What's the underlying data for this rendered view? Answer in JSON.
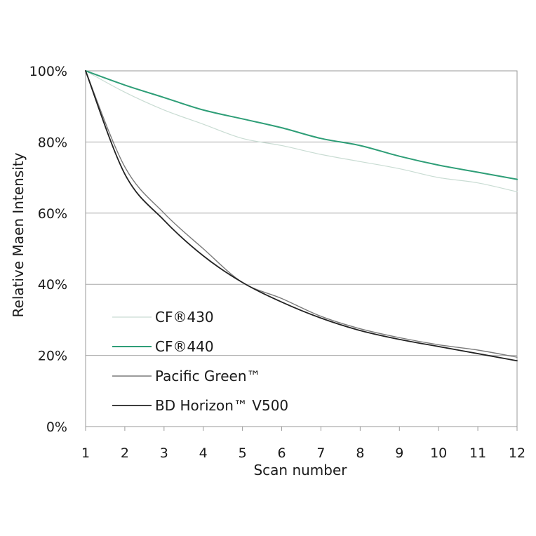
{
  "chart_data": {
    "type": "line",
    "title": "",
    "xlabel": "Scan number",
    "ylabel": "Relative Maen Intensity",
    "x": [
      1,
      2,
      3,
      4,
      5,
      6,
      7,
      8,
      9,
      10,
      11,
      12
    ],
    "xlim": [
      1,
      12
    ],
    "ylim": [
      0,
      100
    ],
    "x_ticks": [
      "1",
      "2",
      "3",
      "4",
      "5",
      "6",
      "7",
      "8",
      "9",
      "10",
      "11",
      "12"
    ],
    "y_ticks": [
      "0%",
      "20%",
      "40%",
      "60%",
      "80%",
      "100%"
    ],
    "y_tick_values": [
      0,
      20,
      40,
      60,
      80,
      100
    ],
    "grid": "horizontal",
    "legend_position": "bottom-left",
    "series": [
      {
        "name": "CF®430",
        "color": "#c9dcd3",
        "stroke": 1.2,
        "values": [
          100,
          94,
          89,
          85,
          81,
          79,
          76.5,
          74.5,
          72.5,
          70,
          68.5,
          66
        ]
      },
      {
        "name": "CF®440",
        "color": "#2e9e77",
        "stroke": 2.0,
        "values": [
          100,
          96,
          92.5,
          89,
          86.5,
          84,
          81,
          79,
          76,
          73.5,
          71.5,
          69.5
        ]
      },
      {
        "name": "Pacific Green™",
        "color": "#7a7a7a",
        "stroke": 1.4,
        "values": [
          100,
          73,
          60,
          50,
          40.5,
          36,
          31,
          27.5,
          25,
          23,
          21.5,
          19.5
        ]
      },
      {
        "name": "BD Horizon™ V500",
        "color": "#222222",
        "stroke": 1.8,
        "values": [
          100,
          71,
          58,
          48,
          40.5,
          35,
          30.5,
          27,
          24.5,
          22.5,
          20.5,
          18.5
        ]
      }
    ]
  }
}
